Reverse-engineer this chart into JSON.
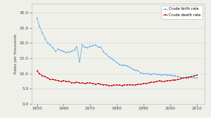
{
  "birth_rate": {
    "years": [
      1950,
      1951,
      1952,
      1953,
      1954,
      1955,
      1956,
      1957,
      1958,
      1959,
      1960,
      1961,
      1962,
      1963,
      1964,
      1965,
      1966,
      1967,
      1968,
      1969,
      1970,
      1971,
      1972,
      1973,
      1974,
      1975,
      1976,
      1977,
      1978,
      1979,
      1980,
      1981,
      1982,
      1983,
      1984,
      1985,
      1986,
      1987,
      1988,
      1989,
      1990,
      1991,
      1992,
      1993,
      1994,
      1995,
      1996,
      1997,
      1998,
      1999,
      2000,
      2001,
      2002,
      2003,
      2004,
      2005,
      2006,
      2007,
      2008,
      2009,
      2010
    ],
    "values": [
      28.1,
      25.4,
      23.4,
      21.5,
      20.0,
      19.4,
      18.5,
      17.2,
      18.0,
      17.5,
      17.2,
      16.9,
      17.0,
      17.3,
      17.7,
      18.6,
      13.8,
      19.3,
      18.6,
      18.5,
      18.8,
      19.2,
      19.3,
      18.6,
      18.6,
      17.1,
      16.3,
      15.5,
      14.9,
      14.2,
      13.6,
      13.0,
      12.6,
      12.7,
      12.5,
      11.9,
      11.4,
      11.1,
      10.8,
      10.2,
      10.0,
      9.9,
      9.8,
      9.6,
      10.0,
      9.6,
      9.7,
      9.5,
      9.6,
      9.4,
      9.5,
      9.3,
      9.2,
      8.9,
      8.8,
      8.4,
      8.7,
      8.6,
      8.7,
      8.5,
      8.5
    ],
    "color": "#7bb8e0",
    "label": "Crude birth rate"
  },
  "death_rate": {
    "years": [
      1950,
      1951,
      1952,
      1953,
      1954,
      1955,
      1956,
      1957,
      1958,
      1959,
      1960,
      1961,
      1962,
      1963,
      1964,
      1965,
      1966,
      1967,
      1968,
      1969,
      1970,
      1971,
      1972,
      1973,
      1974,
      1975,
      1976,
      1977,
      1978,
      1979,
      1980,
      1981,
      1982,
      1983,
      1984,
      1985,
      1986,
      1987,
      1988,
      1989,
      1990,
      1991,
      1992,
      1993,
      1994,
      1995,
      1996,
      1997,
      1998,
      1999,
      2000,
      2001,
      2002,
      2003,
      2004,
      2005,
      2006,
      2007,
      2008,
      2009,
      2010
    ],
    "values": [
      10.9,
      9.9,
      9.3,
      8.9,
      8.5,
      8.0,
      8.0,
      7.8,
      7.6,
      7.4,
      7.6,
      7.4,
      7.3,
      7.0,
      6.9,
      7.1,
      6.8,
      6.8,
      6.7,
      6.8,
      6.9,
      6.6,
      6.5,
      6.6,
      6.5,
      6.3,
      6.3,
      6.0,
      6.0,
      6.1,
      6.2,
      6.1,
      6.0,
      6.2,
      6.2,
      6.3,
      6.2,
      6.2,
      6.5,
      6.4,
      6.7,
      6.7,
      6.9,
      7.1,
      7.1,
      7.4,
      7.6,
      7.4,
      7.4,
      7.7,
      7.7,
      7.8,
      7.8,
      8.0,
      8.2,
      8.6,
      8.6,
      8.8,
      9.0,
      9.1,
      9.5
    ],
    "color": "#cc2222",
    "label": "Crude death rate"
  },
  "xlim": [
    1948,
    2013
  ],
  "ylim": [
    0.0,
    33.0
  ],
  "yticks": [
    0.0,
    5.0,
    10.0,
    15.0,
    20.0,
    25.0,
    30.0
  ],
  "ytick_labels": [
    "0.0",
    "5.0",
    "10.0",
    "15.0",
    "20.0",
    "25.0",
    "30.0"
  ],
  "xticks": [
    1950,
    1960,
    1970,
    1980,
    1990,
    2000,
    2010
  ],
  "ylabel": "Rates per thousands",
  "bg_color": "#f0f0eb",
  "plot_bg": "#f0f0eb",
  "grid_color": "#d8d8d8",
  "marker": "s",
  "markersize": 1.8,
  "linewidth": 0.7
}
